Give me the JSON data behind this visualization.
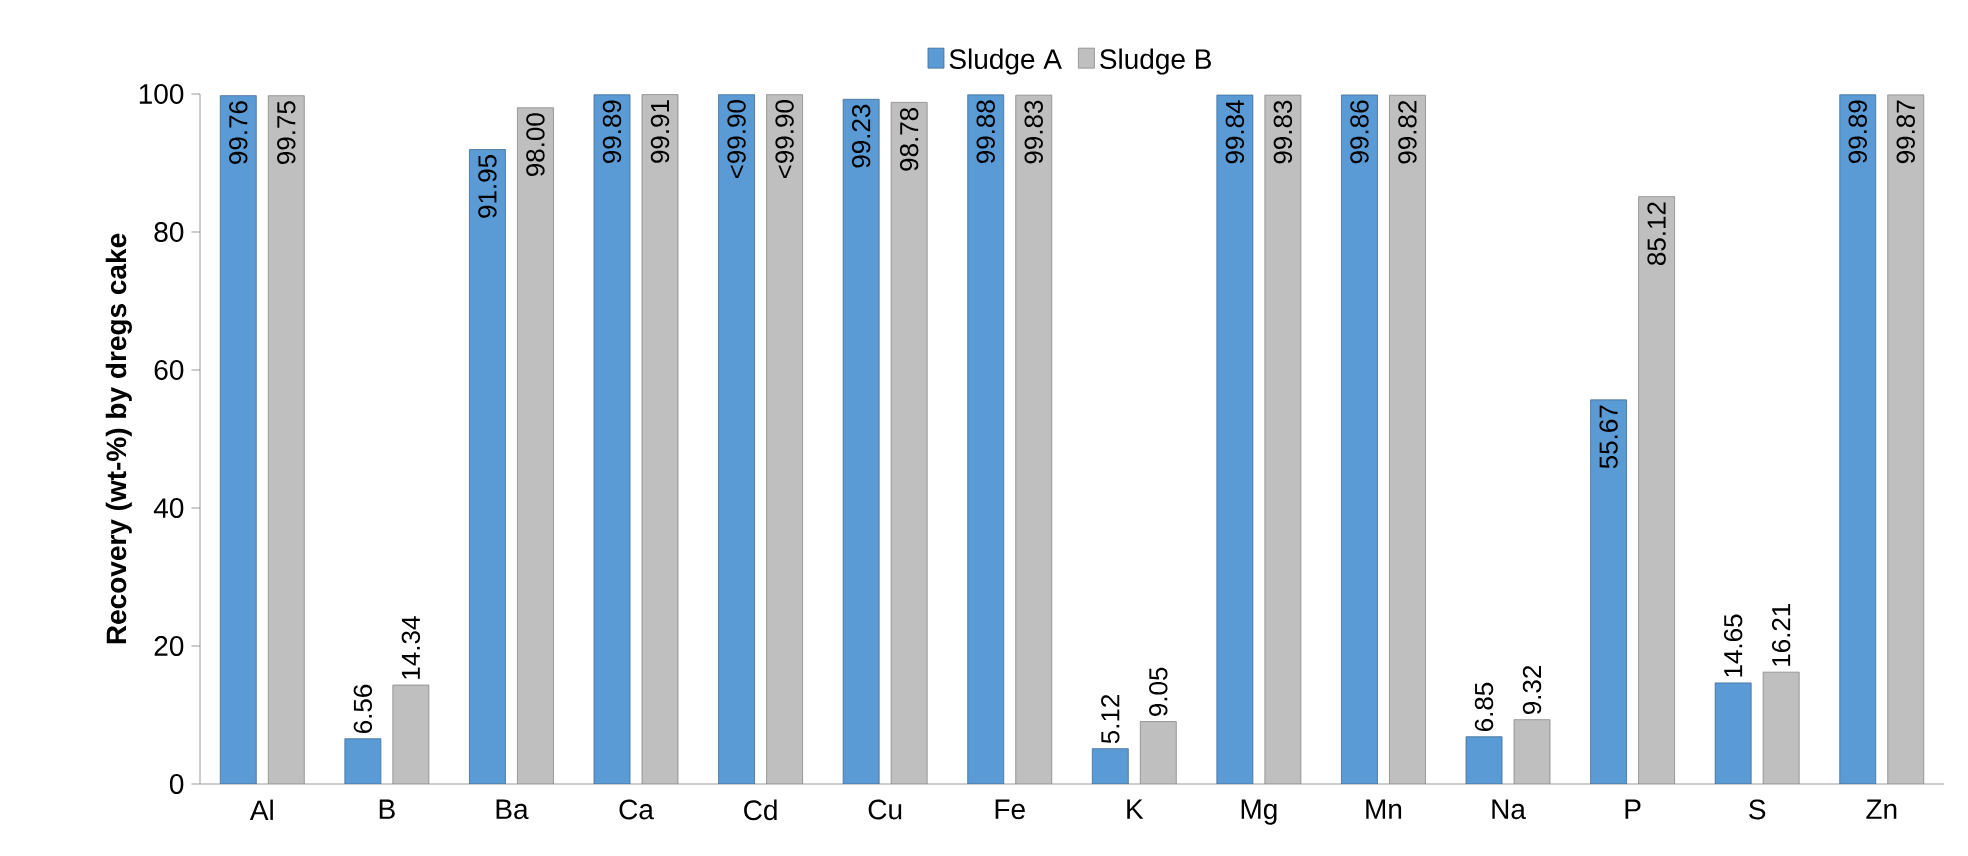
{
  "chart_data": {
    "type": "bar",
    "ylabel": "Recovery (wt-%) by dregs cake",
    "categories": [
      "Al",
      "B",
      "Ba",
      "Ca",
      "Cd",
      "Cu",
      "Fe",
      "K",
      "Mg",
      "Mn",
      "Na",
      "P",
      "S",
      "Zn"
    ],
    "series": [
      {
        "name": "Sludge A",
        "color": "#5b9bd5",
        "values": [
          99.76,
          6.56,
          91.95,
          99.89,
          99.9,
          99.23,
          99.88,
          5.12,
          99.84,
          99.86,
          6.85,
          55.67,
          14.65,
          99.89
        ],
        "value_labels": [
          "99.76",
          "6.56",
          "91.95",
          "99.89",
          "<99.90",
          "99.23",
          "99.88",
          "5.12",
          "99.84",
          "99.86",
          "6.85",
          "55.67",
          "14.65",
          "99.89"
        ]
      },
      {
        "name": "Sludge B",
        "color": "#bfbfbf",
        "values": [
          99.75,
          14.34,
          98.0,
          99.91,
          99.9,
          98.78,
          99.83,
          9.05,
          99.83,
          99.82,
          9.32,
          85.12,
          16.21,
          99.87
        ],
        "value_labels": [
          "99.75",
          "14.34",
          "98.00",
          "99.91",
          "<99.90",
          "98.78",
          "99.83",
          "9.05",
          "99.83",
          "99.82",
          "9.32",
          "85.12",
          "16.21",
          "99.87"
        ]
      }
    ],
    "ylim": [
      0,
      100
    ],
    "yticks": [
      0,
      20,
      40,
      60,
      80,
      100
    ],
    "legend": "top",
    "grid": false
  }
}
